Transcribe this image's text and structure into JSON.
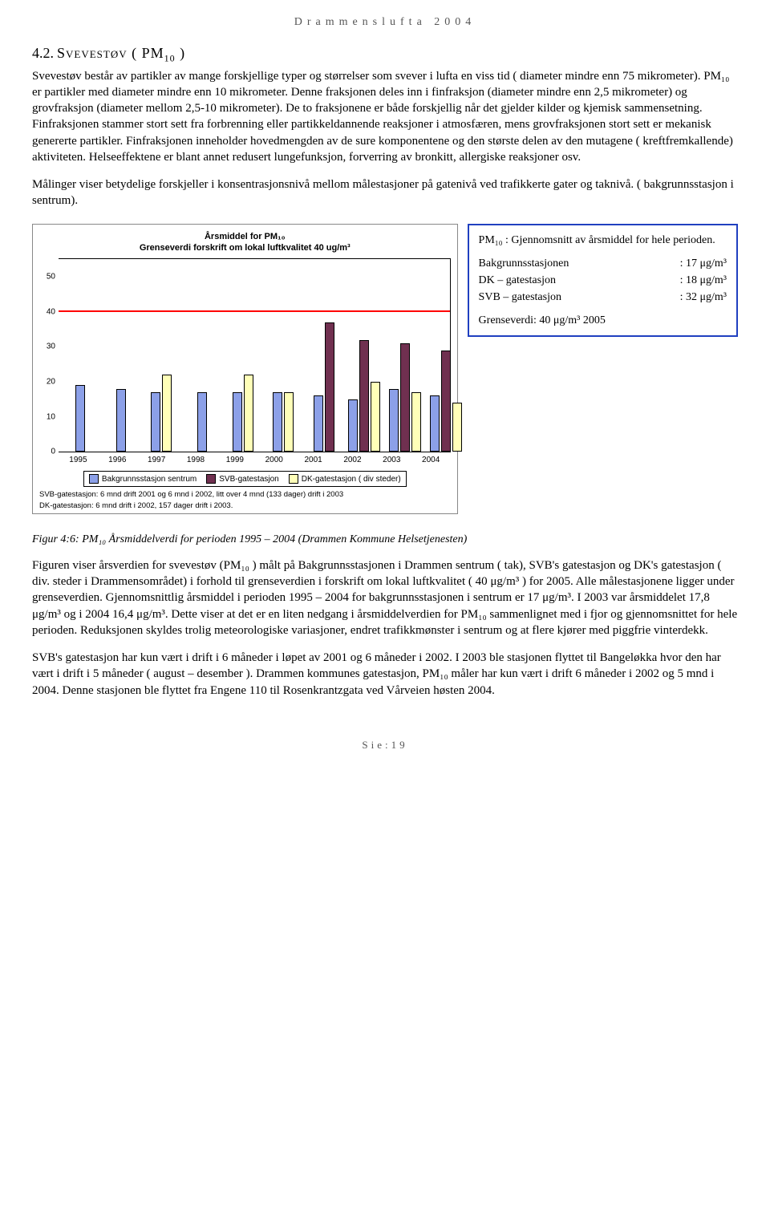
{
  "header": "Drammenslufta 2004",
  "section": {
    "number": "4.2.",
    "title": "Svevestøv ( PM",
    "title_sub": "10",
    "title_end": " )"
  },
  "para1": "Svevestøv består av partikler av mange forskjellige typer og størrelser som svever i lufta en viss tid ( diameter mindre enn 75 mikrometer). PM₁₀ er partikler med diameter mindre enn 10 mikrometer. Denne fraksjonen deles inn i finfraksjon (diameter mindre enn 2,5 mikrometer) og grovfraksjon (diameter mellom 2,5-10 mikrometer). De to fraksjonene er både forskjellig når det gjelder kilder og kjemisk sammensetning. Finfraksjonen stammer stort sett fra forbrenning eller partikkeldannende reaksjoner i atmosfæren, mens grovfraksjonen stort sett er mekanisk genererte partikler. Finfraksjonen inneholder hovedmengden av de sure komponentene og den største delen av den mutagene ( kreftfremkallende) aktiviteten. Helseeffektene er blant annet redusert lungefunksjon, forverring av bronkitt, allergiske reaksjoner osv.",
  "para2": "Målinger viser betydelige forskjeller i konsentrasjonsnivå mellom målestasjoner på gatenivå ved trafikkerte gater og taknivå. ( bakgrunnsstasjon i sentrum).",
  "chart": {
    "title_line1": "Årsmiddel for PM₁₀",
    "title_line2": "Grenseverdi forskrift om lokal luftkvalitet 40 ug/m³",
    "ylim": [
      0,
      55
    ],
    "yticks": [
      0,
      10,
      20,
      30,
      40,
      50
    ],
    "limit_value": 40,
    "limit_color": "#ff0000",
    "years": [
      "1995",
      "1996",
      "1997",
      "1998",
      "1999",
      "2000",
      "2001",
      "2002",
      "2003",
      "2004"
    ],
    "series": [
      {
        "name": "Bakgrunnsstasjon sentrum",
        "color": "#8ca0e8",
        "values": [
          19,
          18,
          17,
          17,
          17,
          17,
          16,
          15,
          18,
          16
        ]
      },
      {
        "name": "SVB-gatestasjon",
        "color": "#703050",
        "values": [
          null,
          null,
          null,
          null,
          null,
          null,
          37,
          32,
          31,
          29
        ]
      },
      {
        "name": "DK-gatestasjon ( div steder)",
        "color": "#ffffb8",
        "values": [
          null,
          null,
          22,
          null,
          22,
          17,
          null,
          20,
          17,
          14
        ]
      }
    ],
    "legend": [
      {
        "label": "Bakgrunnsstasjon sentrum",
        "color": "#8ca0e8"
      },
      {
        "label": "SVB-gatestasjon",
        "color": "#703050"
      },
      {
        "label": "DK-gatestasjon ( div steder)",
        "color": "#ffffb8"
      }
    ],
    "footnote1": "SVB-gatestasjon: 6 mnd drift 2001 og 6 mnd i 2002, litt over 4 mnd (133 dager) drift i 2003",
    "footnote2": "DK-gatestasjon: 6 mnd drift i 2002, 157 dager drift i 2003."
  },
  "infobox": {
    "line1": "PM₁₀ : Gjennomsnitt av årsmiddel for hele perioden.",
    "rows": [
      {
        "label": "Bakgrunnsstasjonen",
        "value": ": 17 μg/m³"
      },
      {
        "label": "DK – gatestasjon",
        "value": ": 18 μg/m³"
      },
      {
        "label": "SVB – gatestasjon",
        "value": ": 32 μg/m³"
      }
    ],
    "line2": "Grenseverdi:  40 μg/m³ 2005"
  },
  "caption": "Figur 4:6: PM₁₀ Årsmiddelverdi for perioden 1995 – 2004 (Drammen Kommune Helsetjenesten)",
  "para3": "Figuren viser årsverdien for svevestøv (PM₁₀ ) målt på Bakgrunnsstasjonen i Drammen sentrum ( tak), SVB's gatestasjon og DK's gatestasjon ( div. steder i Drammensområdet) i forhold til grenseverdien i forskrift om lokal luftkvalitet ( 40 μg/m³ ) for 2005. Alle målestasjonene ligger under grenseverdien. Gjennomsnittlig årsmiddel i perioden 1995 – 2004 for bakgrunnsstasjonen i sentrum er 17 μg/m³. I 2003 var årsmiddelet 17,8 μg/m³ og i 2004 16,4 μg/m³. Dette viser at det er en liten nedgang i årsmiddelverdien for PM₁₀ sammenlignet med i fjor og gjennomsnittet for hele perioden. Reduksjonen skyldes trolig meteorologiske variasjoner, endret trafikkmønster i sentrum og at flere kjører med piggfrie vinterdekk.",
  "para4": "SVB's gatestasjon har kun vært i drift i 6 måneder i løpet av 2001 og 6 måneder i 2002. I 2003 ble stasjonen flyttet til Bangeløkka hvor den har vært i drift i 5 måneder ( august – desember ). Drammen kommunes gatestasjon, PM₁₀ måler har kun vært i drift 6 måneder i 2002 og 5 mnd i 2004. Denne stasjonen ble flyttet fra Engene 110 til Rosenkrantzgata ved Vårveien høsten 2004.",
  "footer": "Sie:19"
}
